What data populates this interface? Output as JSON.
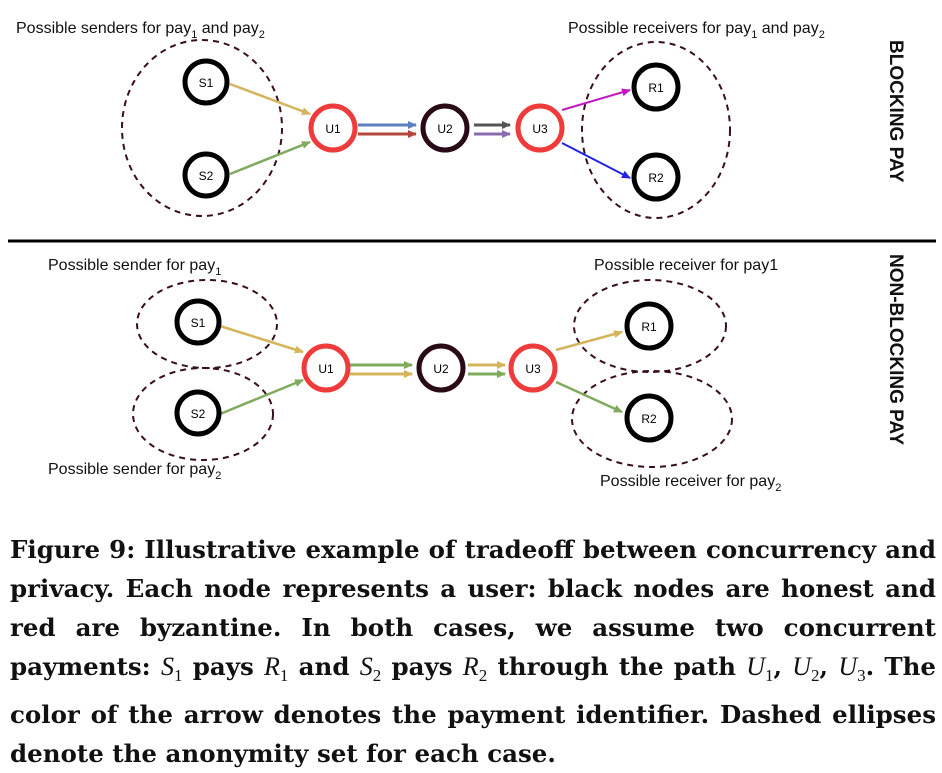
{
  "figure": {
    "top": {
      "senders_label_prefix": "Possible senders for pay",
      "senders_label_mid": " and pay",
      "receivers_label_prefix": "Possible receivers for pay",
      "receivers_label_mid": " and pay",
      "sub1": "1",
      "sub2": "2",
      "side_label": "BLOCKING PAY"
    },
    "bottom": {
      "sender1_label": "Possible sender for pay",
      "sender2_label": "Possible sender for pay",
      "receiver1_label": "Possible receiver for pay1",
      "receiver2_label": "Possible receiver for pay",
      "sub1": "1",
      "sub2": "2",
      "side_label": "NON-BLOCKING PAY"
    },
    "nodes": {
      "s1": "S1",
      "s2": "S2",
      "u1": "U1",
      "u2": "U2",
      "u3": "U3",
      "r1": "R1",
      "r2": "R2"
    },
    "colors": {
      "honest": "#000000",
      "byzantine": "#ef3b3b",
      "u2_border": "#2a0a16",
      "ellipse": "#3a0f1c",
      "pay1": "#d6b45c",
      "pay2": "#7fab5d",
      "blue": "#5b7fbf",
      "red_arrow": "#b5463a",
      "dark": "#555555",
      "purple": "#8a6bb0",
      "magenta": "#c21ac2",
      "deep_blue": "#2323e6"
    }
  },
  "caption": {
    "label": "Figure 9:",
    "t1": " Illustrative example of tradeoff between concurrency and privacy. Each node represents a user: black nodes are honest and red are byzantine. In both cases, we assume two concurrent payments: ",
    "S": "S",
    "R": "R",
    "U": "U",
    "n1": "1",
    "n2": "2",
    "n3": "3",
    "pays": " pays ",
    "and": " and ",
    "through": " through the path ",
    "comma": ", ",
    "t2": ". The color of the arrow denotes the payment identifier. Dashed ellipses denote the anonymity set for each case."
  }
}
